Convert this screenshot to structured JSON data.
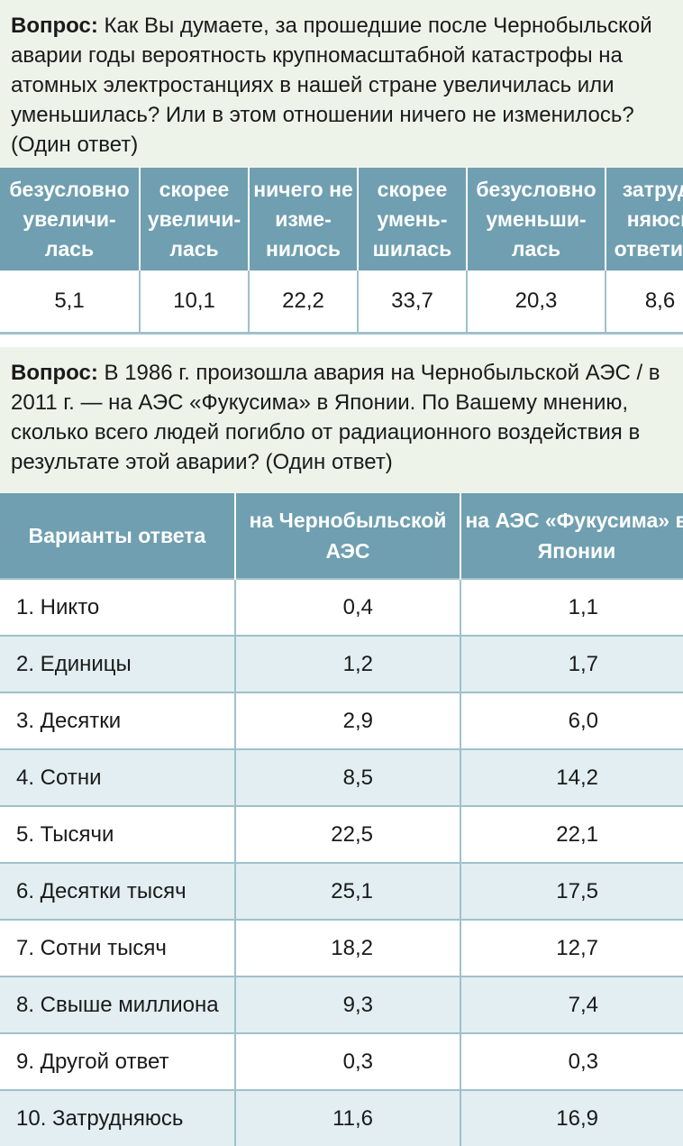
{
  "q1": {
    "label": "Вопрос:",
    "text": " Как Вы думаете, за прошедшие после Чернобыльской аварии годы вероятность крупномасштабной катастрофы на атомных электростанциях в нашей стране увеличилась или уменьшилась? Или в этом отношении ничего не изменилось? (Один ответ)",
    "headers": [
      "безусловно увеличи-лась",
      "скорее увеличи-лась",
      "ничего не изме-нилось",
      "скорее умень-шилась",
      "безусловно уменьши-лась",
      "затруд-няюсь ответить"
    ],
    "values": [
      "5,1",
      "10,1",
      "22,2",
      "33,7",
      "20,3",
      "8,6"
    ]
  },
  "q2": {
    "label": "Вопрос:",
    "text": " В 1986 г. произошла авария на Чернобыльской АЭС / в 2011 г. — на АЭС «Фукусима» в Японии. По Вашему мнению, сколько всего людей погибло от радиационного воздействия в результате этой аварии? (Один ответ)",
    "col_options": "Варианты ответа",
    "col_chernobyl": "на Чернобыльской АЭС",
    "col_fukushima": "на АЭС «Фукусима» в Японии",
    "rows": [
      {
        "option": "1. Никто",
        "chernobyl": "0,4",
        "fukushima": "1,1"
      },
      {
        "option": "2. Единицы",
        "chernobyl": "1,2",
        "fukushima": "1,7"
      },
      {
        "option": "3. Десятки",
        "chernobyl": "2,9",
        "fukushima": "6,0"
      },
      {
        "option": "4. Сотни",
        "chernobyl": "8,5",
        "fukushima": "14,2"
      },
      {
        "option": "5. Тысячи",
        "chernobyl": "22,5",
        "fukushima": "22,1"
      },
      {
        "option": "6. Десятки тысяч",
        "chernobyl": "25,1",
        "fukushima": "17,5"
      },
      {
        "option": "7. Сотни тысяч",
        "chernobyl": "18,2",
        "fukushima": "12,7"
      },
      {
        "option": "8. Свыше миллиона",
        "chernobyl": "9,3",
        "fukushima": "7,4"
      },
      {
        "option": "9. Другой ответ",
        "chernobyl": "0,3",
        "fukushima": "0,3"
      },
      {
        "option": "10. Затрудняюсь",
        "chernobyl": "11,6",
        "fukushima": "16,9"
      }
    ]
  }
}
